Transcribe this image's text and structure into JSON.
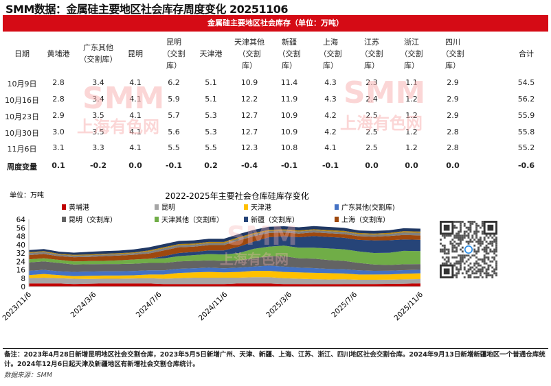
{
  "title": "SMM数据：金属硅主要地区社会库存周度变化 20251106",
  "table": {
    "banner": "金属硅主要地区社会库存（单位：万吨）",
    "headers": [
      [
        "日期"
      ],
      [
        "黄埔港"
      ],
      [
        "广东其他",
        "（交割库）"
      ],
      [
        "昆明"
      ],
      [
        "昆明",
        "（交割",
        "库）"
      ],
      [
        "天津港"
      ],
      [
        "天津其他",
        "（交割",
        "库）"
      ],
      [
        "新疆",
        "（交割",
        "库）"
      ],
      [
        "上海",
        "（交割",
        "库）"
      ],
      [
        "江苏",
        "（交割",
        "库）"
      ],
      [
        "浙江",
        "（交割",
        "库）"
      ],
      [
        "四川",
        "（交割",
        "库）"
      ],
      [
        "合计"
      ]
    ],
    "rows": [
      [
        "10月9日",
        "2.8",
        "3.4",
        "4.1",
        "6.2",
        "5.1",
        "10.9",
        "11.4",
        "4.3",
        "2.3",
        "1.1",
        "2.9",
        "54.5"
      ],
      [
        "10月16日",
        "2.8",
        "3.4",
        "4.1",
        "5.9",
        "5.1",
        "12.2",
        "11.9",
        "4.3",
        "2.4",
        "1.2",
        "2.9",
        "56.2"
      ],
      [
        "10月23日",
        "2.9",
        "3.5",
        "4.1",
        "5.7",
        "5.3",
        "12.7",
        "10.9",
        "4.2",
        "2.5",
        "1.2",
        "2.9",
        "55.9"
      ],
      [
        "10月30日",
        "3.0",
        "3.5",
        "4.1",
        "5.6",
        "5.3",
        "12.7",
        "10.9",
        "4.2",
        "2.5",
        "1.2",
        "2.8",
        "55.8"
      ],
      [
        "11月6日",
        "3.1",
        "3.3",
        "4.1",
        "5.5",
        "5.5",
        "12.3",
        "10.8",
        "4.1",
        "2.5",
        "1.2",
        "2.8",
        "55.2"
      ]
    ],
    "change_row": [
      "周度变量",
      "0.1",
      "-0.2",
      "0.0",
      "-0.1",
      "0.2",
      "-0.4",
      "-0.1",
      "-0.1",
      "0.0",
      "0.0",
      "0.0",
      "-0.6"
    ]
  },
  "watermark": {
    "logo": "SMM",
    "name": "上海有色网"
  },
  "chart_data": {
    "type": "area",
    "stacked": true,
    "title": "2022-2025年主要社会仓库硅库存变化",
    "unit_label": "单位：万吨",
    "ylim": [
      0,
      64
    ],
    "yticks": [
      0,
      8,
      16,
      24,
      32,
      40,
      48,
      56,
      64
    ],
    "xtick_labels": [
      "2023/11/6",
      "2024/3/6",
      "2024/7/6",
      "2024/11/6",
      "2025/3/6",
      "2025/7/6",
      "2025/11/6"
    ],
    "xtick_dates": [
      "2023-11-06",
      "2024-03-06",
      "2024-07-06",
      "2024-11-06",
      "2025-03-06",
      "2025-07-06",
      "2025-11-06"
    ],
    "grid": false,
    "legend_position": "top",
    "x": [
      "2023-11-06",
      "2023-12-04",
      "2024-01-01",
      "2024-01-29",
      "2024-02-26",
      "2024-03-25",
      "2024-04-22",
      "2024-05-20",
      "2024-06-17",
      "2024-07-15",
      "2024-08-12",
      "2024-09-09",
      "2024-10-07",
      "2024-11-04",
      "2024-12-02",
      "2024-12-30",
      "2025-01-27",
      "2025-02-24",
      "2025-03-24",
      "2025-04-21",
      "2025-05-19",
      "2025-06-16",
      "2025-07-14",
      "2025-08-11",
      "2025-09-08",
      "2025-10-06",
      "2025-11-06"
    ],
    "series": [
      {
        "name": "黄埔港",
        "color": "#C00000",
        "values": [
          3,
          3,
          3,
          2.5,
          2.8,
          3,
          3,
          3,
          3,
          2.5,
          2.5,
          2.5,
          2.5,
          2.5,
          3,
          3,
          3,
          2.5,
          2.5,
          2.3,
          2.3,
          2.5,
          2.5,
          2.5,
          2.6,
          2.8,
          3.1
        ]
      },
      {
        "name": "昆明",
        "color": "#A5A5A5",
        "values": [
          5,
          5.5,
          5,
          5,
          4.5,
          4.5,
          4.5,
          4.8,
          5,
          5,
          5.5,
          6,
          6,
          6,
          5.5,
          6,
          6,
          5.5,
          5,
          4.8,
          4.5,
          4.5,
          4,
          4,
          4,
          4.1,
          4.1
        ]
      },
      {
        "name": "天津港",
        "color": "#FFC000",
        "values": [
          3,
          3.5,
          3,
          2.5,
          3,
          3,
          3,
          3,
          3.5,
          4,
          5,
          5,
          5.5,
          5,
          5.5,
          6,
          6,
          6,
          6,
          6,
          6,
          5.5,
          5,
          5,
          5,
          5.4,
          5.5
        ]
      },
      {
        "name": "广东其他(交割库)",
        "color": "#4472C4",
        "values": [
          4,
          4,
          3.5,
          4,
          4,
          4,
          4,
          4,
          4,
          4,
          4,
          4,
          4,
          4,
          4,
          4,
          5,
          5,
          4.5,
          4.5,
          4,
          4,
          4,
          3.5,
          3.5,
          3.4,
          3.3
        ]
      },
      {
        "name": "昆明（交割库）",
        "color": "#636363",
        "values": [
          8,
          8,
          8,
          7,
          7,
          7,
          7,
          7,
          7,
          7,
          7,
          7,
          7,
          7,
          7,
          8,
          9,
          10,
          9,
          9,
          8.5,
          8,
          7,
          6,
          5.5,
          5.6,
          5.5
        ]
      },
      {
        "name": "天津其他（交割库）",
        "color": "#70AD47",
        "values": [
          3,
          3,
          3,
          3,
          3,
          3,
          3.5,
          4,
          4,
          4.5,
          5,
          5.5,
          6,
          6,
          7,
          9,
          9,
          10,
          10,
          10.5,
          11,
          11,
          11,
          11,
          11.5,
          12.7,
          12.3
        ]
      },
      {
        "name": "新疆（交割库）",
        "color": "#264478",
        "values": [
          0,
          0,
          0,
          0,
          0,
          0,
          0,
          0,
          0,
          2,
          3,
          3,
          3.5,
          4,
          6,
          7,
          9,
          9,
          10,
          11,
          11,
          11,
          11,
          12,
          12,
          10.9,
          10.8
        ]
      },
      {
        "name": "上海（交割库）",
        "color": "#9E480E",
        "values": [
          4,
          4,
          3.5,
          4,
          4,
          4.5,
          4.5,
          4.5,
          5,
          5.5,
          5.5,
          5,
          5,
          5,
          6,
          5,
          4,
          3.5,
          3.5,
          3.5,
          3.5,
          3.5,
          3.5,
          3.5,
          4,
          4.2,
          4.1
        ]
      },
      {
        "color": "#7F7F7F",
        "values": [
          2,
          2,
          1.5,
          1.5,
          1.5,
          1.5,
          1.5,
          1.5,
          2,
          2,
          2,
          2,
          2,
          2,
          2,
          2,
          2,
          2,
          2,
          2,
          2,
          2,
          2,
          2,
          2,
          2.5,
          2.5
        ]
      },
      {
        "color": "#B8860B",
        "values": [
          0.8,
          0.8,
          0.8,
          0.8,
          0.8,
          0.8,
          0.8,
          0.8,
          1,
          1,
          1,
          1,
          1,
          1,
          1,
          1,
          1,
          1,
          1,
          1,
          1,
          1,
          1,
          1,
          1,
          1.2,
          1.2
        ]
      },
      {
        "color": "#203864",
        "values": [
          2,
          2,
          2,
          2,
          2.5,
          2.5,
          2.5,
          2.8,
          3,
          3,
          3,
          3,
          3,
          3,
          3,
          3,
          3,
          3,
          3,
          3,
          3,
          3,
          2.5,
          2.5,
          2.5,
          2.8,
          2.8
        ]
      }
    ]
  },
  "qr_icon": "qr-code",
  "footer": {
    "note": "备注：2023年4月28日新增昆明地区社会交割仓库，2023年5月5日新增广州、天津、新疆、上海、江苏、浙江、四川地区社会交割仓库。2024年9月13日新增新疆地区一个普通仓库统计。2024年12月6日起天津及新疆地区有新增社会交割仓库统计。",
    "source": "数据来源：SMM"
  }
}
